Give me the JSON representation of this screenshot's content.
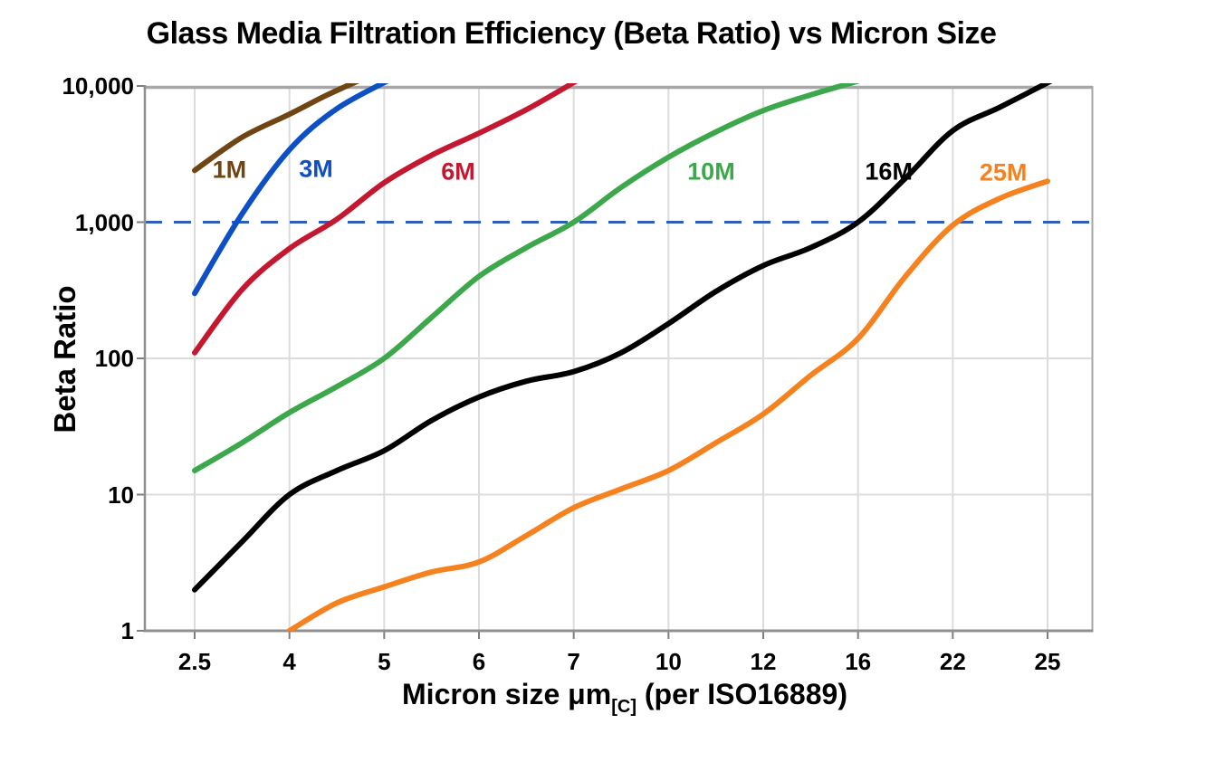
{
  "chart_data": {
    "type": "line",
    "title": "Glass Media Filtration Efficiency (Beta Ratio) vs Micron Size",
    "xlabel_main": "Micron size μm",
    "xlabel_sub": "[C]",
    "xlabel_rest": " (per ISO16889)",
    "ylabel": "Beta Ratio",
    "x_categories": [
      2.5,
      4,
      5,
      6,
      7,
      10,
      12,
      16,
      22,
      25
    ],
    "x_tick_labels": [
      "2.5",
      "4",
      "5",
      "6",
      "7",
      "10",
      "12",
      "16",
      "22",
      "25"
    ],
    "y_scale": "log",
    "y_range": [
      1,
      10000
    ],
    "y_ticks": [
      {
        "value": 10000,
        "label": "10,000"
      },
      {
        "value": 1000,
        "label": "1,000"
      },
      {
        "value": 100,
        "label": "100"
      },
      {
        "value": 10,
        "label": "10"
      },
      {
        "value": 1,
        "label": "1"
      }
    ],
    "grid": true,
    "legend": "inline-labels",
    "reference_line": {
      "value": 1000,
      "style": "dashed",
      "color": "#2e5eb5"
    },
    "series": [
      {
        "name": "1M",
        "color": "#6f4613",
        "label_pos": [
          3.05,
          2400
        ],
        "points": [
          [
            2.5,
            2400
          ],
          [
            3.25,
            4200
          ],
          [
            4,
            6200
          ],
          [
            4.4,
            8600
          ],
          [
            4.8,
            11500
          ]
        ]
      },
      {
        "name": "3M",
        "color": "#0d4fc4",
        "label_pos": [
          4.28,
          2450
        ],
        "points": [
          [
            2.5,
            300
          ],
          [
            3.25,
            1150
          ],
          [
            4,
            3400
          ],
          [
            4.5,
            6800
          ],
          [
            5.1,
            11500
          ]
        ]
      },
      {
        "name": "6M",
        "color": "#c41830",
        "label_pos": [
          5.78,
          2350
        ],
        "points": [
          [
            2.5,
            110
          ],
          [
            3.25,
            320
          ],
          [
            4,
            640
          ],
          [
            4.5,
            1050
          ],
          [
            5,
            1950
          ],
          [
            5.5,
            3100
          ],
          [
            6,
            4500
          ],
          [
            6.5,
            6700
          ],
          [
            7.12,
            11000
          ]
        ]
      },
      {
        "name": "10M",
        "color": "#3ca84b",
        "label_pos": [
          10.9,
          2350
        ],
        "points": [
          [
            2.5,
            15
          ],
          [
            3.25,
            24
          ],
          [
            4,
            40
          ],
          [
            4.5,
            62
          ],
          [
            5,
            100
          ],
          [
            5.5,
            200
          ],
          [
            6,
            400
          ],
          [
            6.5,
            650
          ],
          [
            7,
            1000
          ],
          [
            8.5,
            1800
          ],
          [
            10,
            3000
          ],
          [
            11,
            4600
          ],
          [
            12,
            6600
          ],
          [
            14,
            8600
          ],
          [
            16.15,
            11000
          ]
        ]
      },
      {
        "name": "16M",
        "color": "#000000",
        "label_pos": [
          17.95,
          2350
        ],
        "points": [
          [
            2.5,
            2
          ],
          [
            3.25,
            4.5
          ],
          [
            4,
            10
          ],
          [
            4.5,
            15
          ],
          [
            5,
            21
          ],
          [
            5.5,
            35
          ],
          [
            6,
            52
          ],
          [
            6.5,
            68
          ],
          [
            7,
            80
          ],
          [
            8.5,
            110
          ],
          [
            10,
            180
          ],
          [
            11,
            310
          ],
          [
            12,
            480
          ],
          [
            14,
            650
          ],
          [
            16,
            1000
          ],
          [
            19,
            2100
          ],
          [
            22,
            4700
          ],
          [
            23.5,
            7000
          ],
          [
            25.15,
            11000
          ]
        ]
      },
      {
        "name": "25M",
        "color": "#f5821f",
        "label_pos": [
          23.6,
          2300
        ],
        "points": [
          [
            4,
            1
          ],
          [
            4.5,
            1.6
          ],
          [
            5,
            2.1
          ],
          [
            5.5,
            2.7
          ],
          [
            6,
            3.2
          ],
          [
            6.5,
            5
          ],
          [
            7,
            8
          ],
          [
            8.5,
            11
          ],
          [
            10,
            15
          ],
          [
            11,
            24
          ],
          [
            12,
            39
          ],
          [
            14,
            75
          ],
          [
            16,
            140
          ],
          [
            19,
            400
          ],
          [
            22,
            950
          ],
          [
            23.5,
            1500
          ],
          [
            25,
            2000
          ]
        ]
      }
    ],
    "style_colors": {
      "grid": "#dcdcdc",
      "plot_border": "#a6a6a6",
      "axis_line": "#8f8f8f",
      "tick_mark": "#7f7f7f",
      "text": "#000000",
      "background": "#ffffff"
    }
  }
}
